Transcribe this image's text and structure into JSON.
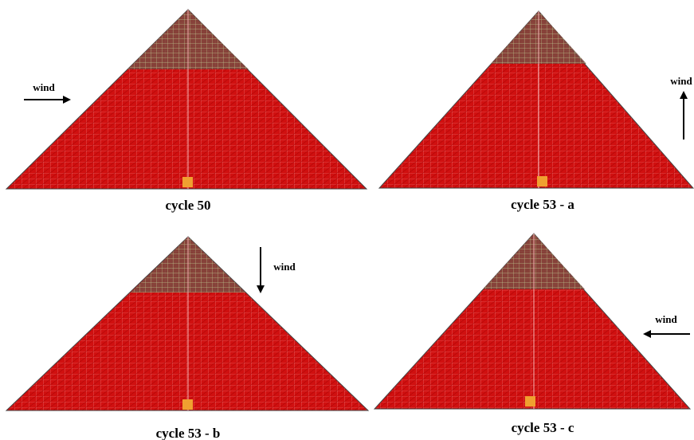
{
  "panels": [
    {
      "caption": "cycle 50",
      "wind": "wind"
    },
    {
      "caption": "cycle 53 - a",
      "wind": "wind"
    },
    {
      "caption": "cycle 53 - b",
      "wind": "wind"
    },
    {
      "caption": "cycle 53 - c",
      "wind": "wind"
    }
  ]
}
